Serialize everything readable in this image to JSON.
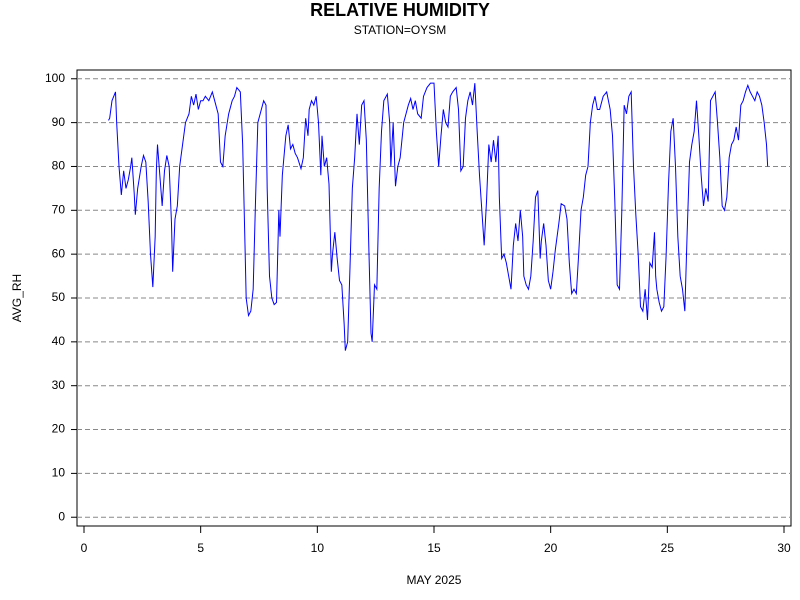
{
  "chart_data": {
    "type": "line",
    "title": "RELATIVE HUMIDITY",
    "subtitle": "STATION=OYSM",
    "x_label": "MAY 2025",
    "y_label": "AVG_RH",
    "xlim": [
      -0.3,
      30.3
    ],
    "xticks": [
      0,
      5,
      10,
      15,
      20,
      25,
      30
    ],
    "ylim": [
      -2,
      102
    ],
    "yticks": [
      0,
      10,
      20,
      30,
      40,
      50,
      60,
      70,
      80,
      90,
      100
    ],
    "grid": true,
    "series": [
      {
        "color": "#0000ff",
        "x": [
          1.05,
          1.1,
          1.2,
          1.35,
          1.4,
          1.5,
          1.6,
          1.7,
          1.8,
          1.9,
          2.0,
          2.05,
          2.15,
          2.2,
          2.3,
          2.45,
          2.55,
          2.65,
          2.75,
          2.85,
          2.95,
          3.05,
          3.1,
          3.15,
          3.25,
          3.35,
          3.45,
          3.55,
          3.65,
          3.75,
          3.8,
          3.9,
          4.0,
          4.1,
          4.2,
          4.35,
          4.5,
          4.6,
          4.7,
          4.8,
          4.9,
          5.0,
          5.1,
          5.2,
          5.35,
          5.5,
          5.6,
          5.75,
          5.85,
          5.95,
          6.05,
          6.2,
          6.35,
          6.45,
          6.55,
          6.7,
          6.8,
          6.9,
          6.95,
          7.05,
          7.15,
          7.25,
          7.35,
          7.45,
          7.6,
          7.7,
          7.8,
          7.85,
          7.95,
          8.05,
          8.15,
          8.25,
          8.35,
          8.4,
          8.5,
          8.65,
          8.75,
          8.85,
          8.95,
          9.05,
          9.15,
          9.3,
          9.4,
          9.5,
          9.6,
          9.65,
          9.75,
          9.85,
          9.95,
          10.05,
          10.15,
          10.2,
          10.3,
          10.4,
          10.5,
          10.6,
          10.65,
          10.75,
          10.85,
          10.95,
          11.05,
          11.15,
          11.2,
          11.3,
          11.4,
          11.5,
          11.6,
          11.7,
          11.8,
          11.9,
          12.0,
          12.1,
          12.2,
          12.3,
          12.35,
          12.45,
          12.55,
          12.65,
          12.75,
          12.85,
          13.0,
          13.1,
          13.15,
          13.25,
          13.35,
          13.45,
          13.55,
          13.7,
          13.8,
          13.9,
          14.0,
          14.1,
          14.2,
          14.3,
          14.45,
          14.55,
          14.7,
          14.85,
          15.0,
          15.1,
          15.2,
          15.3,
          15.4,
          15.5,
          15.6,
          15.7,
          15.8,
          15.95,
          16.05,
          16.15,
          16.25,
          16.35,
          16.45,
          16.55,
          16.65,
          16.75,
          16.85,
          16.95,
          17.05,
          17.15,
          17.25,
          17.35,
          17.45,
          17.55,
          17.65,
          17.75,
          17.8,
          17.9,
          18.0,
          18.1,
          18.2,
          18.3,
          18.4,
          18.5,
          18.6,
          18.7,
          18.8,
          18.85,
          18.95,
          19.05,
          19.15,
          19.25,
          19.35,
          19.45,
          19.55,
          19.6,
          19.7,
          19.8,
          19.9,
          20.0,
          20.1,
          20.2,
          20.35,
          20.45,
          20.6,
          20.7,
          20.8,
          20.9,
          21.0,
          21.1,
          21.2,
          21.3,
          21.4,
          21.5,
          21.6,
          21.7,
          21.8,
          21.9,
          22.0,
          22.1,
          22.25,
          22.4,
          22.55,
          22.65,
          22.75,
          22.85,
          22.95,
          23.05,
          23.15,
          23.25,
          23.35,
          23.45,
          23.55,
          23.65,
          23.75,
          23.85,
          23.95,
          24.05,
          24.15,
          24.25,
          24.35,
          24.45,
          24.5,
          24.55,
          24.65,
          24.75,
          24.85,
          24.95,
          25.05,
          25.15,
          25.25,
          25.35,
          25.45,
          25.55,
          25.65,
          25.75,
          25.85,
          25.95,
          26.05,
          26.15,
          26.25,
          26.35,
          26.45,
          26.55,
          26.65,
          26.75,
          26.85,
          26.95,
          27.05,
          27.15,
          27.25,
          27.35,
          27.45,
          27.55,
          27.65,
          27.75,
          27.85,
          27.95,
          28.05,
          28.15,
          28.25,
          28.35,
          28.45,
          28.55,
          28.65,
          28.75,
          28.85,
          28.95,
          29.05,
          29.15,
          29.25,
          29.3
        ],
        "values": [
          90.5,
          91,
          95,
          97,
          90,
          80,
          73.5,
          79,
          75,
          77,
          80,
          82,
          74,
          69,
          75,
          80,
          82.5,
          81,
          72,
          60,
          52.5,
          64,
          79,
          85,
          78,
          71,
          79,
          82.5,
          80,
          67,
          56,
          68,
          71,
          80,
          84,
          90,
          92,
          96,
          94,
          96.5,
          93,
          95,
          95,
          96,
          95,
          97,
          95,
          92,
          81,
          80,
          87,
          92,
          95,
          96,
          98,
          97,
          85,
          62,
          50,
          46,
          47,
          52,
          72,
          90,
          93,
          95,
          94,
          75,
          55,
          50,
          48.5,
          49,
          70,
          64,
          78,
          87,
          89.5,
          84,
          85,
          83,
          82,
          79.5,
          82,
          91,
          87,
          93,
          95,
          94,
          96,
          90,
          78,
          87,
          80,
          82,
          76,
          56,
          60,
          65,
          59,
          54,
          53,
          44,
          38,
          40,
          57,
          75,
          82,
          92,
          85,
          94,
          95,
          86,
          63,
          42,
          40,
          53,
          52,
          75,
          88,
          95,
          96.5,
          90,
          80,
          90,
          75.5,
          80,
          82,
          90,
          92,
          94,
          95.5,
          93,
          95,
          92,
          91,
          96,
          98,
          99,
          99,
          88,
          80,
          87,
          93,
          90,
          89,
          96,
          97,
          98,
          93,
          79,
          80,
          91,
          95,
          97,
          94,
          99,
          88,
          78,
          70,
          62,
          72,
          85,
          81,
          86,
          81,
          87,
          73,
          59,
          60,
          58,
          55,
          52,
          62,
          67,
          63,
          70,
          64,
          55,
          53,
          52,
          55,
          63,
          73,
          74.5,
          59,
          63,
          67,
          62,
          54,
          52,
          56,
          61,
          67,
          71.5,
          71,
          68,
          58,
          51,
          52,
          51,
          60,
          70,
          73,
          78,
          80,
          90,
          94,
          96,
          93,
          93,
          96,
          97,
          93,
          87,
          72,
          53,
          52,
          70,
          94,
          92,
          96,
          97,
          80,
          69,
          60,
          48,
          47,
          52,
          45,
          58,
          57,
          65,
          55,
          52,
          49,
          47,
          48,
          60,
          76,
          88,
          91,
          80,
          64,
          55,
          52,
          47,
          65,
          81,
          85,
          88,
          95,
          87,
          78,
          71,
          75,
          72,
          95,
          96,
          97,
          90,
          82,
          71,
          70,
          73,
          82,
          85,
          86,
          89,
          86,
          94,
          95,
          97,
          98.5,
          97,
          96,
          95,
          97,
          96,
          94,
          90,
          85,
          80
        ]
      }
    ]
  }
}
